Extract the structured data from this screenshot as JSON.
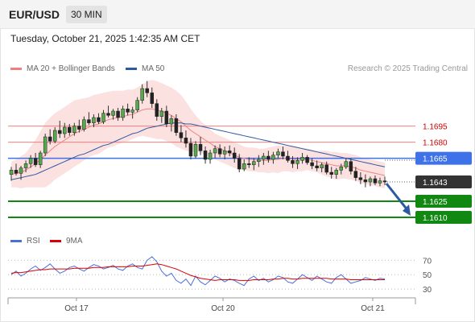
{
  "header": {
    "symbol": "EUR/USD",
    "timeframe": "30 MIN"
  },
  "datetime": "Tuesday, October 21, 2025 1:42:35 AM CET",
  "legend": {
    "ma20": {
      "label": "MA 20 + Bollinger Bands",
      "color": "#f08080"
    },
    "ma50": {
      "label": "MA 50",
      "color": "#2c5aa0"
    }
  },
  "credit": "Research © 2025 Trading Central",
  "rsi_legend": {
    "rsi": {
      "label": "RSI",
      "color": "#4a6fd8"
    },
    "ma9": {
      "label": "9MA",
      "color": "#dd0000"
    }
  },
  "chart_data": [
    {
      "type": "line",
      "subtype": "candlestick",
      "x_ticks": [
        "Oct 17",
        "Oct 20",
        "Oct 21"
      ],
      "ylim": [
        1.1595,
        1.1745
      ],
      "price_levels": [
        {
          "label": "1.1695",
          "value": 1.1695,
          "kind": "resistance-line",
          "color": "#f08080"
        },
        {
          "label": "1.1680",
          "value": 1.168,
          "kind": "resistance-line",
          "color": "#f08080"
        },
        {
          "label": "1.1665",
          "value": 1.1665,
          "kind": "pivot",
          "color": "#3d72e8"
        },
        {
          "label": "1.1643",
          "value": 1.1643,
          "kind": "last-price",
          "color": "#333333"
        },
        {
          "label": "1.1625",
          "value": 1.1625,
          "kind": "support",
          "color": "#118811"
        },
        {
          "label": "1.1610",
          "value": 1.161,
          "kind": "support",
          "color": "#118811"
        }
      ],
      "forecast_arrow": {
        "from": 1.164,
        "to": 1.161,
        "color": "#2c5aa0"
      },
      "candles": [
        [
          1.165,
          1.1657,
          1.1644,
          1.1654
        ],
        [
          1.1654,
          1.166,
          1.1649,
          1.1651
        ],
        [
          1.1651,
          1.1658,
          1.1645,
          1.1656
        ],
        [
          1.1656,
          1.1663,
          1.1652,
          1.166
        ],
        [
          1.166,
          1.1668,
          1.1656,
          1.1665
        ],
        [
          1.1665,
          1.167,
          1.1657,
          1.1659
        ],
        [
          1.1659,
          1.1672,
          1.1656,
          1.167
        ],
        [
          1.167,
          1.1688,
          1.1667,
          1.1685
        ],
        [
          1.1685,
          1.1692,
          1.1678,
          1.1681
        ],
        [
          1.1681,
          1.1694,
          1.1679,
          1.1691
        ],
        [
          1.1691,
          1.17,
          1.1684,
          1.1688
        ],
        [
          1.1688,
          1.1698,
          1.1684,
          1.1694
        ],
        [
          1.1694,
          1.1697,
          1.1686,
          1.1689
        ],
        [
          1.1689,
          1.1698,
          1.1686,
          1.1695
        ],
        [
          1.1695,
          1.1701,
          1.1689,
          1.1692
        ],
        [
          1.1692,
          1.1704,
          1.169,
          1.1701
        ],
        [
          1.1701,
          1.1708,
          1.1696,
          1.1698
        ],
        [
          1.1698,
          1.1706,
          1.1694,
          1.1703
        ],
        [
          1.1703,
          1.1707,
          1.1697,
          1.1699
        ],
        [
          1.1699,
          1.171,
          1.1697,
          1.1707
        ],
        [
          1.1707,
          1.1714,
          1.1703,
          1.1705
        ],
        [
          1.1705,
          1.1711,
          1.1701,
          1.1709
        ],
        [
          1.1709,
          1.1712,
          1.17,
          1.1703
        ],
        [
          1.1703,
          1.1714,
          1.17,
          1.1711
        ],
        [
          1.1711,
          1.1716,
          1.1705,
          1.1708
        ],
        [
          1.1708,
          1.1713,
          1.1702,
          1.171
        ],
        [
          1.171,
          1.1722,
          1.1708,
          1.1719
        ],
        [
          1.1719,
          1.1734,
          1.1716,
          1.173
        ],
        [
          1.173,
          1.1737,
          1.1722,
          1.1726
        ],
        [
          1.1726,
          1.1731,
          1.1712,
          1.1716
        ],
        [
          1.1716,
          1.172,
          1.17,
          1.1704
        ],
        [
          1.1704,
          1.1712,
          1.1698,
          1.1709
        ],
        [
          1.1709,
          1.1714,
          1.1694,
          1.1697
        ],
        [
          1.1697,
          1.1705,
          1.169,
          1.1702
        ],
        [
          1.1702,
          1.1706,
          1.1686,
          1.1689
        ],
        [
          1.1689,
          1.1696,
          1.168,
          1.1684
        ],
        [
          1.1684,
          1.1691,
          1.1675,
          1.1679
        ],
        [
          1.1679,
          1.1684,
          1.1664,
          1.1667
        ],
        [
          1.1667,
          1.1681,
          1.1665,
          1.1678
        ],
        [
          1.1678,
          1.1685,
          1.1668,
          1.1672
        ],
        [
          1.1672,
          1.1676,
          1.166,
          1.1664
        ],
        [
          1.1664,
          1.1673,
          1.166,
          1.167
        ],
        [
          1.167,
          1.1677,
          1.1665,
          1.1674
        ],
        [
          1.1674,
          1.1678,
          1.1666,
          1.1669
        ],
        [
          1.1669,
          1.1676,
          1.1664,
          1.1672
        ],
        [
          1.1672,
          1.1677,
          1.1667,
          1.167
        ],
        [
          1.167,
          1.1675,
          1.1661,
          1.1665
        ],
        [
          1.1665,
          1.1669,
          1.1652,
          1.1655
        ],
        [
          1.1655,
          1.1664,
          1.1653,
          1.166
        ],
        [
          1.166,
          1.1666,
          1.1656,
          1.1659
        ],
        [
          1.1659,
          1.1665,
          1.1654,
          1.1662
        ],
        [
          1.1662,
          1.1668,
          1.1657,
          1.1664
        ],
        [
          1.1664,
          1.167,
          1.1659,
          1.1667
        ],
        [
          1.1667,
          1.1672,
          1.1661,
          1.1664
        ],
        [
          1.1664,
          1.1671,
          1.166,
          1.1668
        ],
        [
          1.1668,
          1.1674,
          1.1665,
          1.1671
        ],
        [
          1.1671,
          1.1676,
          1.1664,
          1.1667
        ],
        [
          1.1667,
          1.1672,
          1.1661,
          1.1663
        ],
        [
          1.1663,
          1.1667,
          1.1656,
          1.166
        ],
        [
          1.166,
          1.1666,
          1.1655,
          1.1663
        ],
        [
          1.1663,
          1.167,
          1.166,
          1.1666
        ],
        [
          1.1666,
          1.1668,
          1.1659,
          1.1661
        ],
        [
          1.1661,
          1.1665,
          1.1655,
          1.1658
        ],
        [
          1.1658,
          1.1663,
          1.1653,
          1.1656
        ],
        [
          1.1656,
          1.1661,
          1.1652,
          1.1659
        ],
        [
          1.1659,
          1.1662,
          1.165,
          1.1652
        ],
        [
          1.1652,
          1.1657,
          1.1646,
          1.165
        ],
        [
          1.165,
          1.1656,
          1.1646,
          1.1654
        ],
        [
          1.1654,
          1.166,
          1.165,
          1.1657
        ],
        [
          1.1657,
          1.1665,
          1.1655,
          1.1662
        ],
        [
          1.1662,
          1.1665,
          1.165,
          1.1653
        ],
        [
          1.1653,
          1.1657,
          1.1644,
          1.1647
        ],
        [
          1.1647,
          1.1652,
          1.1641,
          1.1645
        ],
        [
          1.1645,
          1.165,
          1.1638,
          1.1643
        ],
        [
          1.1643,
          1.1648,
          1.1639,
          1.1646
        ],
        [
          1.1646,
          1.1649,
          1.164,
          1.1642
        ],
        [
          1.1642,
          1.1647,
          1.1639,
          1.1644
        ],
        [
          1.1644,
          1.1648,
          1.164,
          1.1643
        ]
      ],
      "ma20": [
        1.165,
        1.1651,
        1.1652,
        1.1654,
        1.1657,
        1.166,
        1.1664,
        1.1668,
        1.1672,
        1.1676,
        1.1679,
        1.1682,
        1.1685,
        1.1688,
        1.169,
        1.1692,
        1.1694,
        1.1696,
        1.1697,
        1.1699,
        1.1701,
        1.1702,
        1.1703,
        1.1704,
        1.1705,
        1.1706,
        1.1708,
        1.171,
        1.1711,
        1.1711,
        1.171,
        1.1709,
        1.1707,
        1.1705,
        1.1702,
        1.1699,
        1.1695,
        1.1691,
        1.1688,
        1.1685,
        1.1682,
        1.1679,
        1.1676,
        1.1674,
        1.1672,
        1.167,
        1.1668,
        1.1666,
        1.1665,
        1.1664,
        1.1664,
        1.1663,
        1.1663,
        1.1663,
        1.1664,
        1.1664,
        1.1665,
        1.1665,
        1.1664,
        1.1664,
        1.1664,
        1.1664,
        1.1663,
        1.1662,
        1.1661,
        1.166,
        1.1659,
        1.1658,
        1.1658,
        1.1658,
        1.1657,
        1.1656,
        1.1654,
        1.1653,
        1.1652,
        1.1651,
        1.165,
        1.1649
      ],
      "bb_upper": [
        1.1662,
        1.1664,
        1.1667,
        1.167,
        1.1676,
        1.1682,
        1.169,
        1.1698,
        1.1703,
        1.1707,
        1.171,
        1.1713,
        1.1716,
        1.1719,
        1.172,
        1.1721,
        1.1722,
        1.1724,
        1.1725,
        1.1726,
        1.1727,
        1.1728,
        1.1728,
        1.1728,
        1.1729,
        1.1729,
        1.1731,
        1.1734,
        1.1737,
        1.1738,
        1.1737,
        1.1735,
        1.1733,
        1.1731,
        1.1728,
        1.1724,
        1.1718,
        1.1711,
        1.1705,
        1.17,
        1.1696,
        1.1692,
        1.1688,
        1.1686,
        1.1684,
        1.1682,
        1.168,
        1.1678,
        1.1676,
        1.1675,
        1.1675,
        1.1674,
        1.1674,
        1.1675,
        1.1676,
        1.1677,
        1.1677,
        1.1677,
        1.1676,
        1.1675,
        1.1675,
        1.1674,
        1.1673,
        1.1672,
        1.1672,
        1.1672,
        1.1671,
        1.1671,
        1.167,
        1.167,
        1.1669,
        1.1668,
        1.1666,
        1.1665,
        1.1664,
        1.1663,
        1.1662,
        1.1661
      ],
      "bb_lower": [
        1.1638,
        1.1638,
        1.1637,
        1.1638,
        1.1638,
        1.1638,
        1.1638,
        1.1638,
        1.1641,
        1.1645,
        1.1648,
        1.1651,
        1.1654,
        1.1657,
        1.166,
        1.1663,
        1.1666,
        1.1668,
        1.1669,
        1.1672,
        1.1675,
        1.1676,
        1.1678,
        1.168,
        1.1681,
        1.1683,
        1.1685,
        1.1686,
        1.1685,
        1.1684,
        1.1683,
        1.1683,
        1.1681,
        1.1679,
        1.1676,
        1.1674,
        1.1672,
        1.1671,
        1.1671,
        1.167,
        1.1668,
        1.1666,
        1.1664,
        1.1662,
        1.166,
        1.1658,
        1.1656,
        1.1654,
        1.1654,
        1.1653,
        1.1653,
        1.1652,
        1.1652,
        1.1651,
        1.1652,
        1.1651,
        1.1653,
        1.1653,
        1.1652,
        1.1653,
        1.1653,
        1.1654,
        1.1653,
        1.1652,
        1.165,
        1.1648,
        1.1647,
        1.1645,
        1.1646,
        1.1646,
        1.1645,
        1.1644,
        1.1642,
        1.1641,
        1.164,
        1.1639,
        1.1638,
        1.1637
      ],
      "ma50": [
        1.1645,
        1.1646,
        1.1647,
        1.1648,
        1.1649,
        1.165,
        1.1652,
        1.1654,
        1.1656,
        1.1658,
        1.166,
        1.1662,
        1.1664,
        1.1666,
        1.1668,
        1.1669,
        1.1671,
        1.1673,
        1.1675,
        1.1677,
        1.1678,
        1.168,
        1.1682,
        1.1684,
        1.1686,
        1.1688,
        1.1689,
        1.1691,
        1.1693,
        1.1694,
        1.1695,
        1.1696,
        1.1697,
        1.1698,
        1.1698,
        1.1698,
        1.1697,
        1.1697,
        1.1696,
        1.1695,
        1.1694,
        1.1693,
        1.1692,
        1.1691,
        1.169,
        1.1689,
        1.1688,
        1.1687,
        1.1686,
        1.1685,
        1.1684,
        1.1683,
        1.1682,
        1.1681,
        1.168,
        1.1679,
        1.1678,
        1.1677,
        1.1676,
        1.1675,
        1.1674,
        1.1673,
        1.1672,
        1.1671,
        1.167,
        1.1669,
        1.1668,
        1.1667,
        1.1666,
        1.1665,
        1.1664,
        1.1663,
        1.1662,
        1.1661,
        1.166,
        1.1659,
        1.1658,
        1.1657
      ]
    },
    {
      "type": "line",
      "ylim": [
        20,
        85
      ],
      "y_ticks": [
        "70",
        "50",
        "30"
      ],
      "grid": true,
      "series": [
        {
          "name": "RSI",
          "color": "#4a6fd8",
          "values": [
            50,
            55,
            48,
            52,
            58,
            62,
            56,
            60,
            65,
            58,
            52,
            55,
            60,
            62,
            58,
            55,
            60,
            64,
            62,
            58,
            60,
            63,
            58,
            56,
            62,
            65,
            60,
            58,
            70,
            75,
            68,
            55,
            48,
            52,
            42,
            38,
            44,
            35,
            48,
            40,
            36,
            42,
            48,
            45,
            40,
            44,
            42,
            38,
            35,
            44,
            48,
            42,
            45,
            40,
            43,
            48,
            46,
            40,
            38,
            44,
            50,
            46,
            42,
            48,
            44,
            40,
            38,
            46,
            50,
            44,
            38,
            40,
            42,
            46,
            44,
            42,
            45,
            44
          ]
        },
        {
          "name": "9MA",
          "color": "#dd0000",
          "values": [
            52,
            53,
            53,
            54,
            55,
            56,
            57,
            57,
            58,
            58,
            58,
            58,
            58,
            59,
            59,
            59,
            59,
            60,
            60,
            60,
            61,
            61,
            61,
            61,
            61,
            62,
            62,
            62,
            63,
            64,
            65,
            64,
            62,
            60,
            58,
            55,
            52,
            49,
            47,
            45,
            44,
            43,
            42,
            43,
            43,
            43,
            43,
            42,
            42,
            42,
            43,
            43,
            43,
            43,
            44,
            44,
            45,
            45,
            44,
            44,
            45,
            45,
            45,
            45,
            45,
            45,
            44,
            44,
            44,
            44,
            43,
            43,
            43,
            43,
            43,
            43,
            43,
            43
          ]
        }
      ]
    }
  ]
}
